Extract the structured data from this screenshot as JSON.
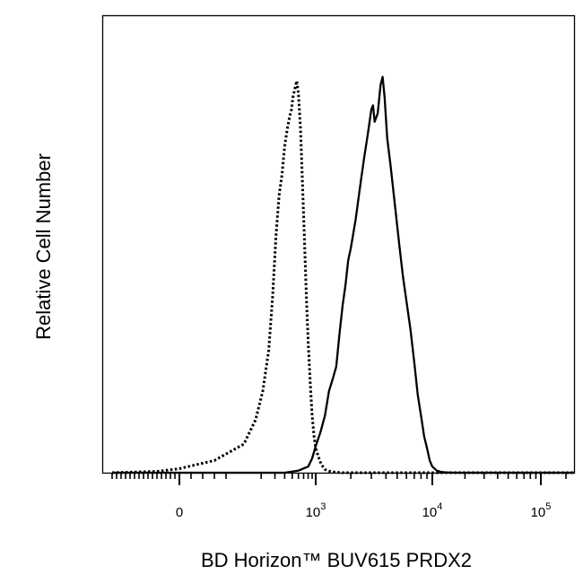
{
  "chart_data": {
    "type": "line",
    "title": "",
    "xlabel": "BD Horizon™ BUV615 PRDX2",
    "ylabel": "Relative Cell Number",
    "x_scale": "biexponential",
    "xlim": [
      -300,
      250000
    ],
    "ylim": [
      0,
      1.0
    ],
    "grid": false,
    "legend": "none",
    "x_ticks": [
      {
        "value": 0,
        "base": "0",
        "exp": ""
      },
      {
        "value": 1000,
        "base": "10",
        "exp": "3"
      },
      {
        "value": 10000,
        "base": "10",
        "exp": "4"
      },
      {
        "value": 100000,
        "base": "10",
        "exp": "5"
      }
    ],
    "series": [
      {
        "style": "dotted",
        "color": "#000000",
        "x": [
          -300,
          -100,
          0,
          60,
          120,
          170,
          210,
          250,
          280,
          310,
          340,
          370,
          400,
          430,
          460,
          490,
          510,
          540,
          570,
          600,
          640,
          680,
          720,
          760,
          800,
          850,
          900,
          950,
          1000,
          1050,
          1100,
          1150,
          1200,
          1300,
          1400,
          1500,
          1700,
          2000,
          3000,
          5000,
          10000,
          100000,
          250000
        ],
        "y": [
          0,
          0.003,
          0.01,
          0.03,
          0.07,
          0.13,
          0.2,
          0.3,
          0.43,
          0.58,
          0.68,
          0.73,
          0.8,
          0.84,
          0.87,
          0.89,
          0.92,
          0.94,
          0.96,
          0.93,
          0.84,
          0.7,
          0.56,
          0.43,
          0.32,
          0.22,
          0.14,
          0.09,
          0.06,
          0.04,
          0.025,
          0.015,
          0.008,
          0.004,
          0.002,
          0.001,
          0,
          0,
          0,
          0,
          0,
          0,
          0
        ]
      },
      {
        "style": "solid",
        "color": "#000000",
        "x": [
          -300,
          0,
          400,
          600,
          800,
          900,
          1000,
          1100,
          1200,
          1300,
          1400,
          1500,
          1600,
          1700,
          1800,
          1900,
          2000,
          2200,
          2400,
          2600,
          2800,
          3000,
          3100,
          3200,
          3400,
          3600,
          3750,
          3900,
          4100,
          4400,
          4800,
          5200,
          5600,
          6000,
          6500,
          7000,
          7500,
          8000,
          8500,
          9000,
          9500,
          10000,
          11000,
          12000,
          13000,
          15000,
          20000,
          100000,
          250000
        ],
        "y": [
          0,
          0,
          0,
          0.005,
          0.015,
          0.035,
          0.065,
          0.1,
          0.14,
          0.2,
          0.23,
          0.26,
          0.34,
          0.41,
          0.46,
          0.52,
          0.55,
          0.62,
          0.7,
          0.77,
          0.83,
          0.89,
          0.9,
          0.86,
          0.88,
          0.95,
          0.97,
          0.92,
          0.82,
          0.75,
          0.65,
          0.56,
          0.48,
          0.42,
          0.35,
          0.27,
          0.19,
          0.14,
          0.09,
          0.06,
          0.03,
          0.015,
          0.005,
          0.002,
          0.001,
          0,
          0,
          0,
          0
        ]
      }
    ]
  }
}
